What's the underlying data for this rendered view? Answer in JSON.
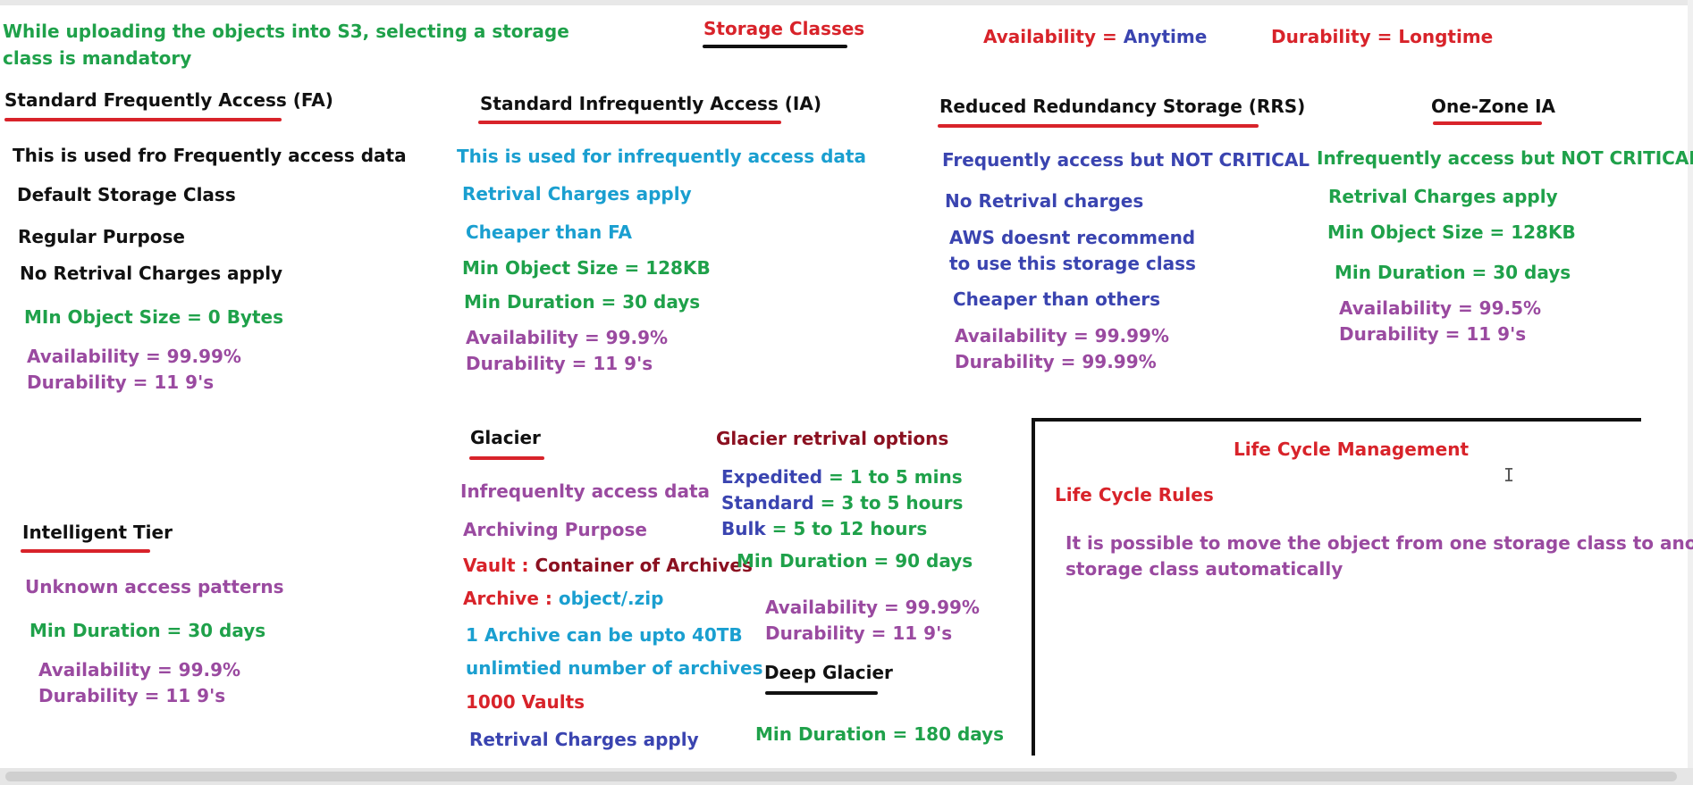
{
  "header": {
    "note_line1": "While uploading the objects into S3, selecting a storage",
    "note_line2": "class is mandatory",
    "title": "Storage Classes",
    "availability_label": "Availability",
    "availability_value": "Anytime",
    "durability_label": "Durability",
    "durability_value": "Longtime",
    "equals": "="
  },
  "standard_fa": {
    "heading": "Standard Frequently Access (FA)",
    "lines": [
      "This is used fro Frequently access data",
      "Default Storage Class",
      "Regular Purpose",
      "No Retrival Charges apply",
      "MIn Object Size = 0 Bytes",
      "Availability = 99.99%",
      "Durability = 11 9's"
    ]
  },
  "standard_ia": {
    "heading": "Standard Infrequently Access (IA)",
    "lines": [
      "This is used for infrequently access data",
      "Retrival Charges apply",
      "Cheaper than FA",
      "Min Object Size = 128KB",
      "Min Duration = 30 days",
      "Availability = 99.9%",
      "Durability = 11 9's"
    ]
  },
  "rrs": {
    "heading": "Reduced Redundancy Storage (RRS)",
    "lines": [
      "Frequently access but NOT CRITICAL",
      "No Retrival charges",
      "AWS doesnt recommend",
      "to use this storage class",
      "Cheaper than others",
      "Availability = 99.99%",
      "Durability = 99.99%"
    ]
  },
  "one_zone": {
    "heading": "One-Zone IA",
    "lines": [
      "Infrequently access but NOT CRITICAL",
      "Retrival Charges apply",
      "Min Object Size = 128KB",
      "Min Duration = 30 days",
      "Availability = 99.5%",
      "Durability = 11 9's"
    ]
  },
  "intelligent": {
    "heading": "Intelligent Tier",
    "lines": [
      "Unknown access patterns",
      "Min Duration = 30 days",
      "Availability = 99.9%",
      "Durability = 11 9's"
    ]
  },
  "glacier": {
    "heading": "Glacier",
    "line_access": "Infrequenlty access data",
    "line_purpose": "Archiving Purpose",
    "vault_label": "Vault :",
    "vault_value": "Container of Archives",
    "archive_label": "Archive :",
    "archive_value": "object/.zip",
    "line_archive_size": "1 Archive can be upto 40TB",
    "line_unlimited": "unlimtied number of archives",
    "line_vaults": "1000 Vaults",
    "line_retrival": "Retrival Charges apply"
  },
  "glacier_options": {
    "heading": "Glacier retrival options",
    "expedited_label": "Expedited",
    "expedited_value": " = 1 to 5 mins",
    "standard_label": "Standard",
    "standard_value": " = 3 to 5 hours",
    "bulk_label": "Bulk",
    "bulk_value": " = 5 to 12 hours",
    "min_duration": "Min Duration = 90 days",
    "availability": "Availability = 99.99%",
    "durability": "Durability = 11 9's"
  },
  "deep_glacier": {
    "heading": "Deep Glacier",
    "min_duration": "Min Duration = 180 days"
  },
  "lifecycle": {
    "heading": "Life Cycle Management",
    "rules_heading": "Life Cycle Rules",
    "text_line1": "It is possible to move the object from one storage class to another",
    "text_line2": "storage class automatically"
  },
  "cursor_glyph": "I",
  "colors": {
    "green": "#1fa14a",
    "red": "#d8232a",
    "blue": "#3a44b0",
    "cyan": "#1a9fd0",
    "purple": "#9a4aa0",
    "maroon": "#8b1020",
    "black": "#111111"
  }
}
